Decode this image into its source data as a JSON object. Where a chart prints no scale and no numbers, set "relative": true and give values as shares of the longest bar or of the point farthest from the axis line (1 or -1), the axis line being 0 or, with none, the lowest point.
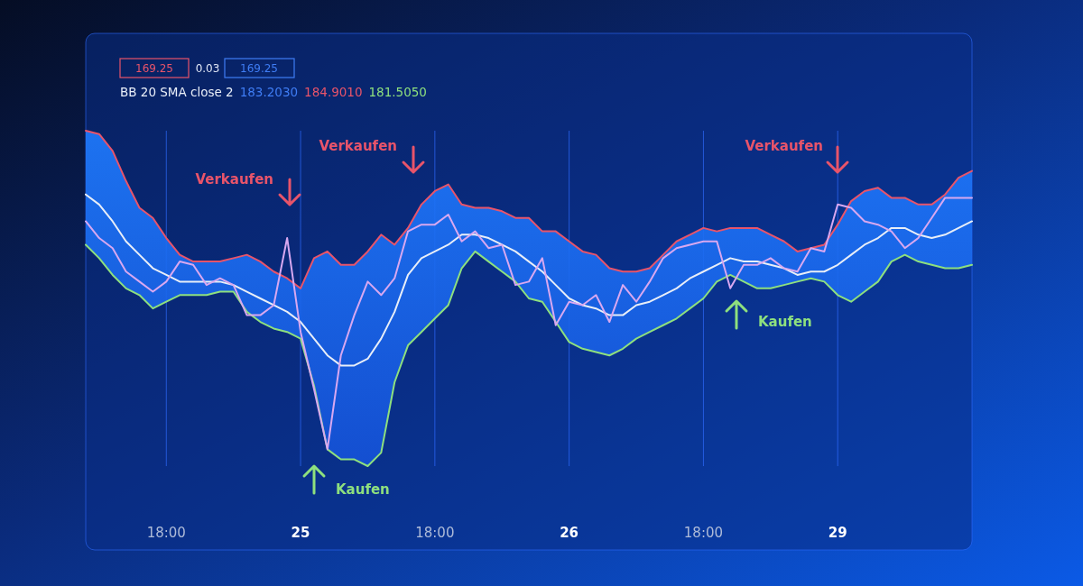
{
  "chart_data": {
    "type": "line",
    "relative": true,
    "legend": false,
    "grid": "x",
    "categories": [
      null,
      null,
      null,
      null,
      null,
      null,
      "18:00",
      null,
      null,
      null,
      null,
      null,
      null,
      null,
      null,
      null,
      "25",
      null,
      null,
      null,
      null,
      null,
      null,
      null,
      null,
      null,
      "18:00",
      null,
      null,
      null,
      null,
      null,
      null,
      null,
      null,
      null,
      "26",
      null,
      null,
      null,
      null,
      null,
      null,
      null,
      null,
      null,
      "18:00",
      null,
      null,
      null,
      null,
      null,
      null,
      null,
      null,
      null,
      "29",
      null,
      null,
      null,
      null,
      null,
      null,
      null,
      null,
      null,
      null
    ],
    "annotations": [
      "169.25",
      "0.03",
      "169.25",
      "BB 20 SMA close 2",
      "183.2030",
      "184.9010",
      "181.5050",
      "Verkaufen",
      "Verkaufen",
      "Verkaufen",
      "Kaufen",
      "Kaufen"
    ],
    "series": [
      {
        "color": "#e8546a",
        "values": [
          1,
          0.99,
          0.94,
          0.85,
          0.77,
          0.74,
          0.68,
          0.63,
          0.61,
          0.61,
          0.61,
          0.62,
          0.63,
          0.61,
          0.58,
          0.56,
          0.53,
          0.62,
          0.64,
          0.6,
          0.6,
          0.64,
          0.69,
          0.66,
          0.71,
          0.78,
          0.82,
          0.84,
          0.78,
          0.77,
          0.77,
          0.76,
          0.74,
          0.74,
          0.7,
          0.7,
          0.67,
          0.64,
          0.63,
          0.59,
          0.58,
          0.58,
          0.59,
          0.63,
          0.67,
          0.69,
          0.71,
          0.7,
          0.71,
          0.71,
          0.71,
          0.69,
          0.67,
          0.64,
          0.65,
          0.66,
          0.72,
          0.79,
          0.82,
          0.83,
          0.8,
          0.8,
          0.78,
          0.78,
          0.81,
          0.86,
          0.88
        ]
      },
      {
        "color": "#e8eef8",
        "values": [
          0.81,
          0.78,
          0.73,
          0.67,
          0.63,
          0.59,
          0.57,
          0.55,
          0.55,
          0.55,
          0.55,
          0.54,
          0.52,
          0.5,
          0.48,
          0.46,
          0.43,
          0.38,
          0.33,
          0.3,
          0.3,
          0.32,
          0.38,
          0.46,
          0.57,
          0.62,
          0.64,
          0.66,
          0.69,
          0.69,
          0.68,
          0.66,
          0.64,
          0.61,
          0.58,
          0.54,
          0.5,
          0.48,
          0.47,
          0.45,
          0.45,
          0.48,
          0.49,
          0.51,
          0.53,
          0.56,
          0.58,
          0.6,
          0.62,
          0.61,
          0.61,
          0.6,
          0.59,
          0.57,
          0.58,
          0.58,
          0.6,
          0.63,
          0.66,
          0.68,
          0.71,
          0.71,
          0.69,
          0.68,
          0.69,
          0.71,
          0.73
        ],
        "upper": [
          1,
          0.99,
          0.94,
          0.85,
          0.77,
          0.74,
          0.68,
          0.63,
          0.61,
          0.61,
          0.61,
          0.62,
          0.63,
          0.61,
          0.58,
          0.56,
          0.53,
          0.62,
          0.64,
          0.6,
          0.6,
          0.64,
          0.69,
          0.66,
          0.71,
          0.78,
          0.82,
          0.84,
          0.78,
          0.77,
          0.77,
          0.76,
          0.74,
          0.74,
          0.7,
          0.7,
          0.67,
          0.64,
          0.63,
          0.59,
          0.58,
          0.58,
          0.59,
          0.63,
          0.67,
          0.69,
          0.71,
          0.7,
          0.71,
          0.71,
          0.71,
          0.69,
          0.67,
          0.64,
          0.65,
          0.66,
          0.72,
          0.79,
          0.82,
          0.83,
          0.8,
          0.8,
          0.78,
          0.78,
          0.81,
          0.86,
          0.88
        ],
        "lower": [
          0.66,
          0.62,
          0.57,
          0.53,
          0.51,
          0.47,
          0.49,
          0.51,
          0.51,
          0.51,
          0.52,
          0.52,
          0.46,
          0.43,
          0.41,
          0.4,
          0.38,
          0.24,
          0.05,
          0.02,
          0.02,
          0,
          0.04,
          0.25,
          0.36,
          0.4,
          0.44,
          0.48,
          0.59,
          0.64,
          0.61,
          0.58,
          0.55,
          0.5,
          0.49,
          0.43,
          0.37,
          0.35,
          0.34,
          0.33,
          0.35,
          0.38,
          0.4,
          0.42,
          0.44,
          0.47,
          0.5,
          0.55,
          0.57,
          0.55,
          0.53,
          0.53,
          0.54,
          0.55,
          0.56,
          0.55,
          0.51,
          0.49,
          0.52,
          0.55,
          0.61,
          0.63,
          0.61,
          0.6,
          0.59,
          0.59,
          0.6
        ]
      },
      {
        "color": "#8ee07e",
        "values": [
          0.66,
          0.62,
          0.57,
          0.53,
          0.51,
          0.47,
          0.49,
          0.51,
          0.51,
          0.51,
          0.52,
          0.52,
          0.46,
          0.43,
          0.41,
          0.4,
          0.38,
          0.24,
          0.05,
          0.02,
          0.02,
          0,
          0.04,
          0.25,
          0.36,
          0.4,
          0.44,
          0.48,
          0.59,
          0.64,
          0.61,
          0.58,
          0.55,
          0.5,
          0.49,
          0.43,
          0.37,
          0.35,
          0.34,
          0.33,
          0.35,
          0.38,
          0.4,
          0.42,
          0.44,
          0.47,
          0.5,
          0.55,
          0.57,
          0.55,
          0.53,
          0.53,
          0.54,
          0.55,
          0.56,
          0.55,
          0.51,
          0.49,
          0.52,
          0.55,
          0.61,
          0.63,
          0.61,
          0.6,
          0.59,
          0.59,
          0.6
        ]
      },
      {
        "color": "#d8a8f0",
        "values": [
          0.73,
          0.68,
          0.65,
          0.58,
          0.55,
          0.52,
          0.55,
          0.61,
          0.6,
          0.54,
          0.56,
          0.54,
          0.45,
          0.45,
          0.48,
          0.68,
          0.4,
          0.23,
          0.05,
          0.33,
          0.45,
          0.55,
          0.51,
          0.56,
          0.7,
          0.72,
          0.72,
          0.75,
          0.67,
          0.7,
          0.65,
          0.66,
          0.54,
          0.55,
          0.62,
          0.42,
          0.49,
          0.48,
          0.51,
          0.43,
          0.54,
          0.49,
          0.55,
          0.62,
          0.65,
          0.66,
          0.67,
          0.67,
          0.53,
          0.6,
          0.6,
          0.62,
          0.59,
          0.58,
          0.65,
          0.64,
          0.78,
          0.77,
          0.73,
          0.72,
          0.7,
          0.65,
          0.68,
          0.74,
          0.8,
          0.8,
          0.8
        ]
      }
    ]
  }
}
